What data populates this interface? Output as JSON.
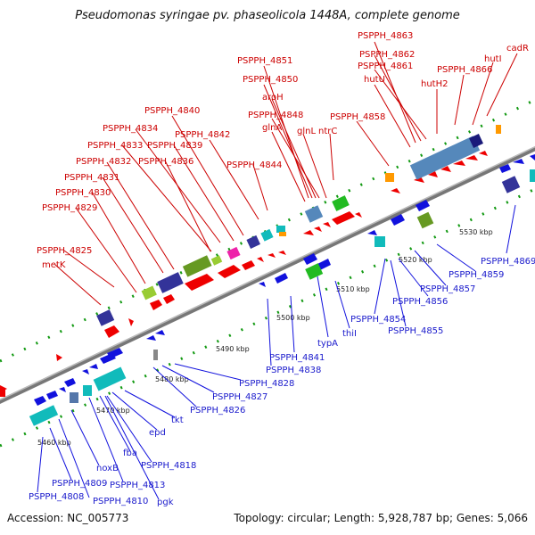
{
  "title": "Pseudomonas syringae pv. phaseolicola 1448A, complete genome",
  "accession": "Accession: NC_005773",
  "summary": "Topology: circular; Length: 5,928,787 bp; Genes: 5,066",
  "scale_labels": [
    "5460 kbp",
    "5470 kbp",
    "5480 kbp",
    "5490 kbp",
    "5500 kbp",
    "5510 kbp",
    "5520 kbp",
    "5530 kbp"
  ],
  "top_labels": [
    "PSPPH_4863",
    "PSPPH_4862",
    "PSPPH_4861",
    "cadR",
    "hutI",
    "PSPPH_4866",
    "hutU",
    "hutH2",
    "PSPPH_4851",
    "PSPPH_4850",
    "aroH",
    "PSPPH_4848",
    "glnA",
    "glnL",
    "ntrC",
    "PSPPH_4858",
    "PSPPH_4840",
    "PSPPH_4834",
    "PSPPH_4842",
    "PSPPH_4833",
    "PSPPH_4839",
    "PSPPH_4832",
    "PSPPH_4836",
    "PSPPH_4844",
    "PSPPH_4831",
    "PSPPH_4830",
    "PSPPH_4829",
    "PSPPH_4825",
    "metK"
  ],
  "bottom_labels": [
    "PSPPH_4869",
    "PSPPH_4859",
    "PSPPH_4857",
    "PSPPH_4856",
    "PSPPH_4854",
    "PSPPH_4855",
    "thiI",
    "typA",
    "PSPPH_4841",
    "PSPPH_4838",
    "PSPPH_4828",
    "PSPPH_4827",
    "PSPPH_4826",
    "tkt",
    "epd",
    "fba",
    "PSPPH_4818",
    "noxB",
    "PSPPH_4813",
    "pgk",
    "PSPPH_4809",
    "PSPPH_4808",
    "PSPPH_4810"
  ],
  "colors": {
    "forward": "#dd0000",
    "reverse": "#1111dd",
    "axis": "#777777",
    "scale_tick": "#119911"
  }
}
